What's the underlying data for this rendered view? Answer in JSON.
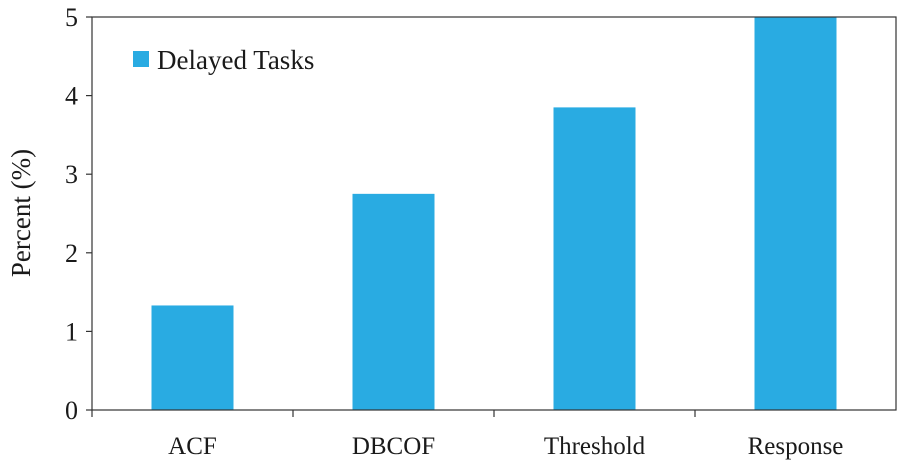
{
  "chart_data": {
    "type": "bar",
    "title": "",
    "xlabel": "",
    "ylabel": "Percent (%)",
    "categories": [
      "ACF",
      "DBCOF",
      "Threshold",
      "Response"
    ],
    "series": [
      {
        "name": "Delayed Tasks",
        "values": [
          1.33,
          2.75,
          3.85,
          5.0
        ],
        "color": "#29abe2"
      }
    ],
    "ylim": [
      0,
      5
    ],
    "yticks": [
      "0",
      "1",
      "2",
      "3",
      "4",
      "5"
    ],
    "grid": false,
    "legend_position": "top-left"
  }
}
